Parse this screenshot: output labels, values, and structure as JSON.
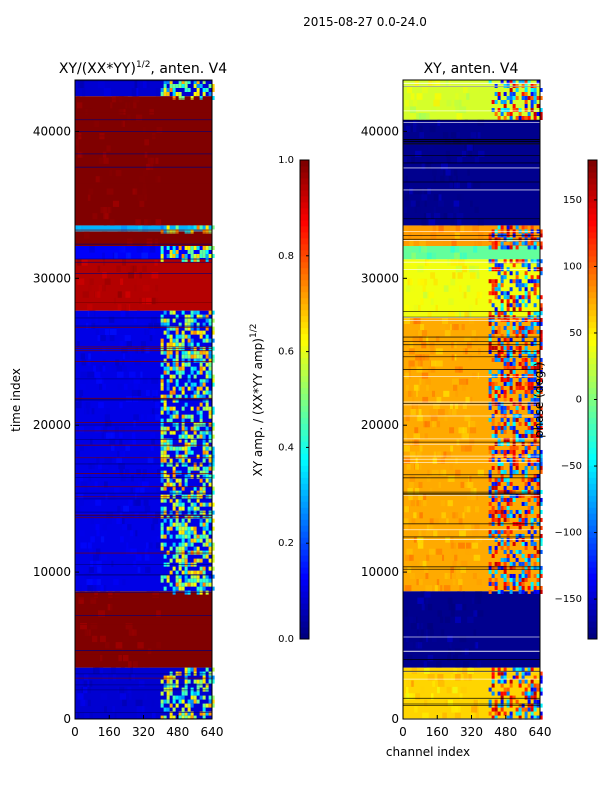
{
  "figure": {
    "suptitle": "2015-08-27 0.0-24.0"
  },
  "chart_data": [
    {
      "type": "heatmap",
      "title": "XY/(XX*YY)^1/2, anten. V4",
      "title_main": "XY/(XX*YY)",
      "title_exp": "1/2",
      "title_rest": ", anten. V4",
      "xlabel": "",
      "ylabel": "time index",
      "xlim": [
        0,
        640
      ],
      "ylim": [
        0,
        43500
      ],
      "xticks": [
        0,
        160,
        320,
        480,
        640
      ],
      "yticks": [
        0,
        10000,
        20000,
        30000,
        40000
      ],
      "colorbar": {
        "label_main": "XY amp. / (XX*YY amp)",
        "label_exp": "1/2",
        "range": [
          0.0,
          1.0
        ],
        "ticks": [
          "0.0",
          "0.2",
          "0.4",
          "0.6",
          "0.8",
          "1.0"
        ],
        "colormap": "jet"
      },
      "bands": [
        {
          "y0": 0,
          "y1": 3500,
          "value": 0.08
        },
        {
          "y0": 3500,
          "y1": 8700,
          "value": 1.0
        },
        {
          "y0": 8700,
          "y1": 27800,
          "value": 0.1
        },
        {
          "y0": 27800,
          "y1": 31300,
          "value": 0.95
        },
        {
          "y0": 31300,
          "y1": 32200,
          "value": 0.12
        },
        {
          "y0": 32200,
          "y1": 33200,
          "value": 1.0
        },
        {
          "y0": 33200,
          "y1": 33600,
          "value": 0.3
        },
        {
          "y0": 33600,
          "y1": 42400,
          "value": 1.0
        },
        {
          "y0": 42400,
          "y1": 43500,
          "value": 0.08
        }
      ],
      "high_channel_region": {
        "x0": 400,
        "x1": 640,
        "value": 0.5
      }
    },
    {
      "type": "heatmap",
      "title": "XY, anten. V4",
      "xlabel": "channel index",
      "ylabel": "",
      "xlim": [
        0,
        640
      ],
      "ylim": [
        0,
        43500
      ],
      "xticks": [
        0,
        160,
        320,
        480,
        640
      ],
      "yticks": [
        0,
        10000,
        20000,
        30000,
        40000
      ],
      "colorbar": {
        "label": "phase (deg.)",
        "range": [
          -180,
          180
        ],
        "ticks": [
          "−150",
          "−100",
          "−50",
          "0",
          "50",
          "100",
          "150"
        ],
        "tick_values": [
          -150,
          -100,
          -50,
          0,
          50,
          100,
          150
        ],
        "colormap": "jet"
      },
      "bands": [
        {
          "y0": 0,
          "y1": 3500,
          "value": 60
        },
        {
          "y0": 3500,
          "y1": 8700,
          "value": -175
        },
        {
          "y0": 8700,
          "y1": 27300,
          "value": 75
        },
        {
          "y0": 27300,
          "y1": 31300,
          "value": 40
        },
        {
          "y0": 31300,
          "y1": 32200,
          "value": -10
        },
        {
          "y0": 32200,
          "y1": 33600,
          "value": 80
        },
        {
          "y0": 33600,
          "y1": 40800,
          "value": -175
        },
        {
          "y0": 40800,
          "y1": 43500,
          "value": 30
        }
      ]
    }
  ]
}
